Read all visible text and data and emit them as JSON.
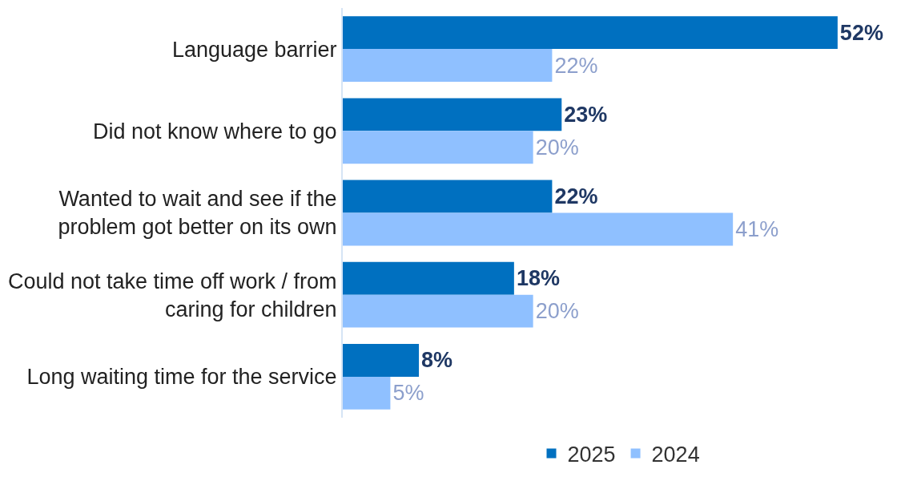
{
  "chart_data": {
    "type": "bar",
    "orientation": "horizontal",
    "legend": "bottom",
    "tick_labels": "y",
    "categories": [
      "Language barrier",
      "Did not know where to go",
      "Wanted to wait and see if the problem got better on its own",
      "Could not take time off work / from caring for children",
      "Long waiting time for the service"
    ],
    "series": [
      {
        "name": "2025",
        "color": "#0070c0",
        "values": [
          52,
          23,
          22,
          18,
          8
        ],
        "value_labels": [
          "52%",
          "23%",
          "22%",
          "18%",
          "8%"
        ]
      },
      {
        "name": "2024",
        "color": "#8fc0ff",
        "values": [
          22,
          20,
          41,
          20,
          5
        ],
        "value_labels": [
          "22%",
          "20%",
          "41%",
          "20%",
          "5%"
        ]
      }
    ]
  }
}
